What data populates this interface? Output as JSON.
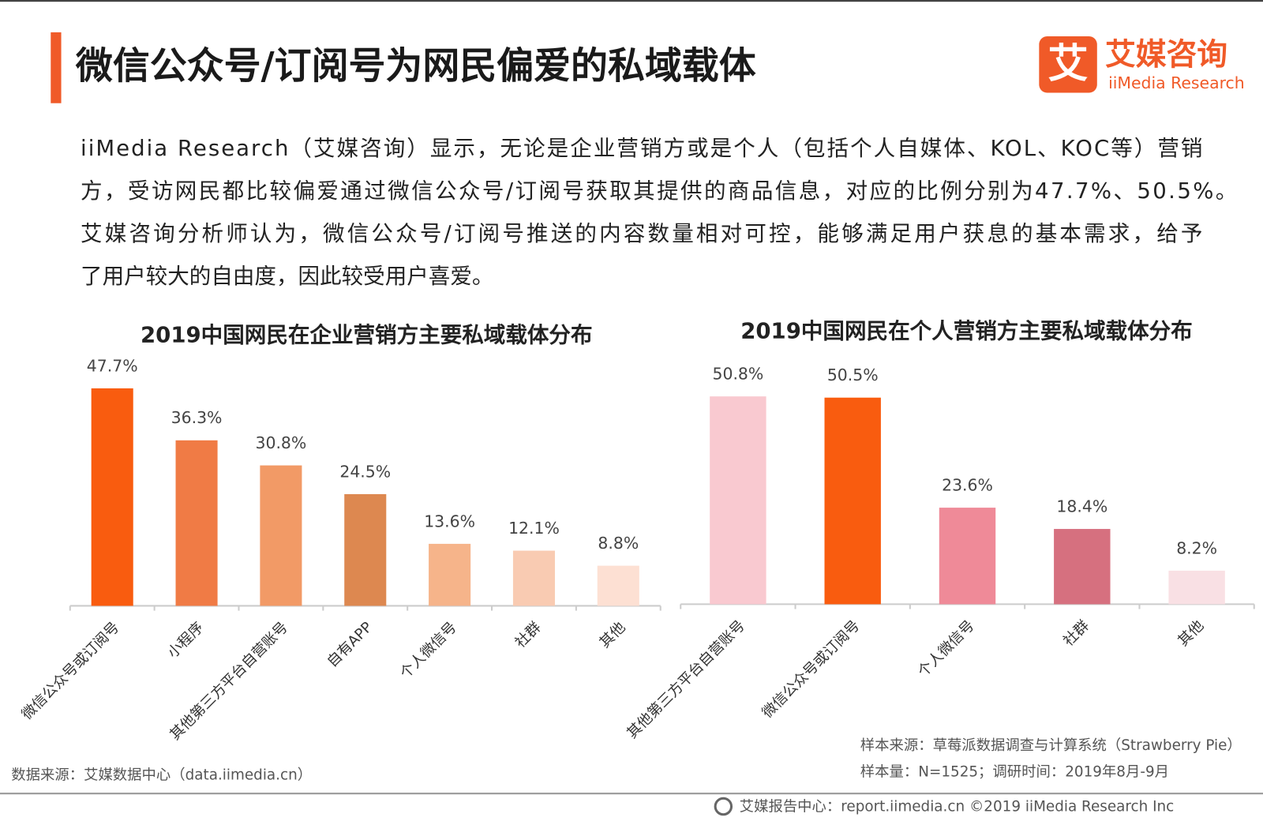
{
  "header": {
    "title": "微信公众号/订阅号为网民偏爱的私域载体",
    "logo_icon": "艾",
    "logo_name": "艾媒咨询",
    "logo_en": "iiMedia Research"
  },
  "paragraph": [
    "iiMedia Research（艾媒咨询）显示，无论是企业营销方或是个人（包括个人自媒体、KOL、KOC等）营销",
    "方，受访网民都比较偏爱通过微信公众号/订阅号获取其提供的商品信息，对应的比例分别为47.7%、50.5%。",
    "艾媒咨询分析师认为，微信公众号/订阅号推送的内容数量相对可控，能够满足用户获息的基本需求，给予",
    "了用户较大的自由度，因此较受用户喜爱。"
  ],
  "chart_data": [
    {
      "type": "bar",
      "title": "2019中国网民在企业营销方主要私域载体分布",
      "categories": [
        "微信公众号或订阅号",
        "小程序",
        "其他第三方平台自营账号",
        "自有APP",
        "个人微信号",
        "社群",
        "其他"
      ],
      "values": [
        47.7,
        36.3,
        30.8,
        24.5,
        13.6,
        12.1,
        8.8
      ],
      "value_labels": [
        "47.7%",
        "36.3%",
        "30.8%",
        "24.5%",
        "13.6%",
        "12.1%",
        "8.8%"
      ],
      "colors": [
        "#f95c0f",
        "#f07b45",
        "#f29a66",
        "#dd8850",
        "#f6b48a",
        "#f9cbb2",
        "#fde0d3"
      ]
    },
    {
      "type": "bar",
      "title": "2019中国网民在个人营销方主要私域载体分布",
      "categories": [
        "其他第三方平台自营账号",
        "微信公众号或订阅号",
        "个人微信号",
        "社群",
        "其他"
      ],
      "values": [
        50.8,
        50.5,
        23.6,
        18.4,
        8.2
      ],
      "value_labels": [
        "50.8%",
        "50.5%",
        "23.6%",
        "18.4%",
        "8.2%"
      ],
      "colors": [
        "#f9c9d0",
        "#f95c0f",
        "#ef8a98",
        "#d6707f",
        "#f9e0e4"
      ]
    }
  ],
  "footer": {
    "source": "数据来源：艾媒数据中心（data.iimedia.cn）",
    "sample_source": "样本来源：草莓派数据调查与计算系统（Strawberry Pie）",
    "sample_size": "样本量：N=1525；调研时间：2019年8月-9月",
    "copyright": "艾媒报告中心：report.iimedia.cn ©2019  iiMedia Research Inc"
  }
}
